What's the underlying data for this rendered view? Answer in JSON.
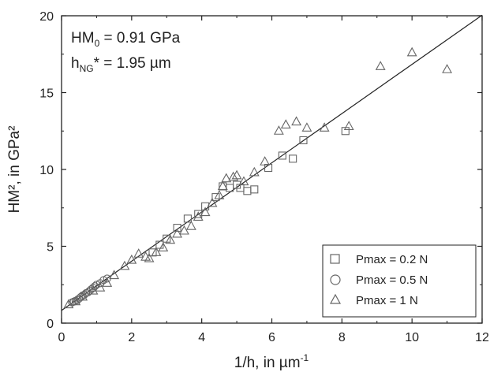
{
  "chart_data": {
    "type": "scatter",
    "xlabel": {
      "main": "1/h, in µm",
      "sup": "-1"
    },
    "ylabel": "HM², in GPa²",
    "xlim": [
      0,
      12
    ],
    "ylim": [
      0,
      20
    ],
    "xticks": [
      0,
      2,
      4,
      6,
      8,
      10,
      12
    ],
    "yticks": [
      0,
      5,
      10,
      15,
      20
    ],
    "grid": false,
    "legend_position": "bottom-right",
    "annotations": [
      {
        "main": "HM",
        "sub": "0",
        "rest": " = 0.91 GPa"
      },
      {
        "main": "h",
        "sub": "NG",
        "rest": "* = 1.95 µm"
      }
    ],
    "fit_line": {
      "intercept": 0.8281,
      "slope": 1.601
    },
    "series": [
      {
        "name": "Pmax = 0.2 N",
        "marker": "square",
        "x": [
          2.6,
          2.8,
          3.0,
          3.3,
          3.6,
          3.9,
          4.1,
          4.4,
          4.6,
          4.8,
          5.0,
          5.1,
          5.3,
          5.5,
          5.9,
          6.3,
          6.6,
          6.9,
          8.1
        ],
        "y": [
          4.6,
          5.1,
          5.5,
          6.2,
          6.8,
          7.1,
          7.6,
          8.2,
          8.9,
          8.8,
          9.0,
          8.8,
          8.6,
          8.7,
          10.1,
          10.9,
          10.7,
          11.9,
          12.5
        ]
      },
      {
        "name": "Pmax = 0.5 N",
        "marker": "circle",
        "x": [
          0.3,
          0.35,
          0.4,
          0.45,
          0.5,
          0.55,
          0.6,
          0.65,
          0.7,
          0.75,
          0.8,
          0.85,
          0.9,
          0.95,
          1.0,
          1.1,
          1.2,
          1.3
        ],
        "y": [
          1.35,
          1.4,
          1.45,
          1.5,
          1.6,
          1.7,
          1.8,
          1.85,
          1.95,
          2.0,
          2.1,
          2.2,
          2.3,
          2.4,
          2.5,
          2.6,
          2.8,
          2.9
        ]
      },
      {
        "name": "Pmax = 1 N",
        "marker": "triangle",
        "x": [
          0.2,
          0.4,
          0.6,
          0.9,
          1.1,
          1.3,
          1.5,
          1.8,
          2.0,
          2.2,
          2.4,
          2.5,
          2.7,
          2.9,
          3.1,
          3.3,
          3.5,
          3.7,
          3.9,
          4.1,
          4.3,
          4.5,
          4.6,
          4.7,
          4.9,
          5.0,
          5.2,
          5.5,
          5.8,
          6.2,
          6.4,
          6.7,
          7.0,
          7.5,
          8.2,
          9.1,
          10.0,
          11.0
        ],
        "y": [
          1.2,
          1.4,
          1.7,
          2.1,
          2.3,
          2.6,
          3.1,
          3.7,
          4.1,
          4.5,
          4.3,
          4.2,
          4.6,
          4.9,
          5.4,
          5.8,
          6.0,
          6.3,
          6.9,
          7.2,
          7.8,
          8.3,
          8.9,
          9.4,
          9.5,
          9.6,
          9.2,
          9.8,
          10.5,
          12.5,
          12.9,
          13.1,
          12.7,
          12.7,
          12.8,
          16.7,
          17.6,
          16.5
        ]
      }
    ]
  }
}
